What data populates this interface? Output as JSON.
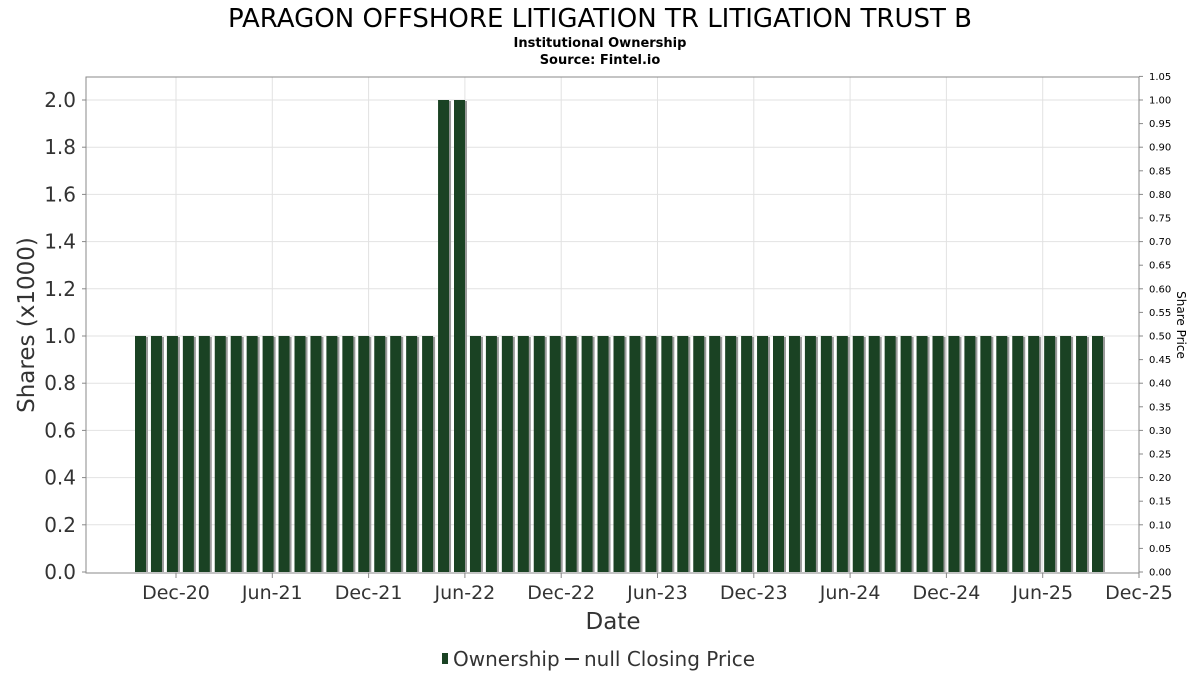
{
  "chart_data": {
    "type": "bar",
    "title": "PARAGON OFFSHORE LITIGATION TR LITIGATION TRUST B",
    "subtitle": "Institutional Ownership",
    "source": "Source: Fintel.io",
    "xlabel": "Date",
    "ylabel": "Shares (x1000)",
    "y2label": "Share Price",
    "ylim": [
      0,
      2.1
    ],
    "y2lim": [
      0,
      1.05
    ],
    "yticks": [
      "0.0",
      "0.2",
      "0.4",
      "0.6",
      "0.8",
      "1.0",
      "1.2",
      "1.4",
      "1.6",
      "1.8",
      "2.0"
    ],
    "y2ticks": [
      "0.00",
      "0.05",
      "0.10",
      "0.15",
      "0.20",
      "0.25",
      "0.30",
      "0.35",
      "0.40",
      "0.45",
      "0.50",
      "0.55",
      "0.60",
      "0.65",
      "0.70",
      "0.75",
      "0.80",
      "0.85",
      "0.90",
      "0.95",
      "1.00",
      "1.05"
    ],
    "xticks": [
      "Dec-20",
      "Jun-21",
      "Dec-21",
      "Jun-22",
      "Dec-22",
      "Jun-23",
      "Dec-23",
      "Jun-24",
      "Dec-24",
      "Jun-25",
      "Dec-25"
    ],
    "grid": true,
    "legend_position": "bottom",
    "legend": [
      "Ownership",
      "null Closing Price"
    ],
    "colors": {
      "bar": "#1a4223",
      "bar_shadow": "#9a9a9a",
      "grid": "#e2e2e2",
      "axis": "#888888"
    },
    "series": [
      {
        "name": "Ownership",
        "values": [
          1.0,
          1.0,
          1.0,
          1.0,
          1.0,
          1.0,
          1.0,
          1.0,
          1.0,
          1.0,
          1.0,
          1.0,
          1.0,
          1.0,
          1.0,
          1.0,
          1.0,
          1.0,
          1.0,
          2.0,
          2.0,
          1.0,
          1.0,
          1.0,
          1.0,
          1.0,
          1.0,
          1.0,
          1.0,
          1.0,
          1.0,
          1.0,
          1.0,
          1.0,
          1.0,
          1.0,
          1.0,
          1.0,
          1.0,
          1.0,
          1.0,
          1.0,
          1.0,
          1.0,
          1.0,
          1.0,
          1.0,
          1.0,
          1.0,
          1.0,
          1.0,
          1.0,
          1.0,
          1.0,
          1.0,
          1.0,
          1.0,
          1.0,
          1.0,
          1.0,
          1.0
        ]
      }
    ]
  }
}
